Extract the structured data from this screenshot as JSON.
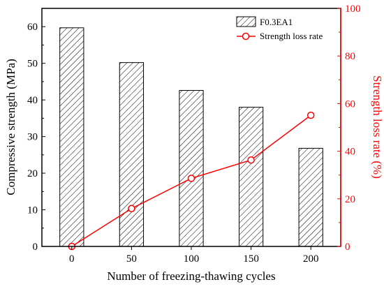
{
  "chart_data": {
    "type": "bar",
    "categories": [
      "0",
      "50",
      "100",
      "150",
      "200"
    ],
    "series": [
      {
        "name": "F0.3EA1",
        "kind": "bar",
        "axis": "left",
        "values": [
          59.7,
          50.2,
          42.6,
          38.0,
          26.8
        ],
        "color": "#000000",
        "fill": "hatched"
      },
      {
        "name": "Strength loss rate",
        "kind": "line",
        "axis": "right",
        "values": [
          0.0,
          15.9,
          28.6,
          36.3,
          55.1
        ],
        "color": "#ff0000",
        "marker": "open-circle"
      }
    ],
    "xlabel": "Number of freezing-thawing cycles",
    "ylabel": "Compressive strength (MPa)",
    "y2label": "Strength loss rate (%)",
    "ylim": [
      0,
      65
    ],
    "y2lim": [
      0,
      100
    ],
    "yticks": [
      0,
      10,
      20,
      30,
      40,
      50,
      60
    ],
    "y2ticks": [
      0,
      20,
      40,
      60,
      80,
      100
    ],
    "legend_position": "top-right",
    "grid": false
  }
}
